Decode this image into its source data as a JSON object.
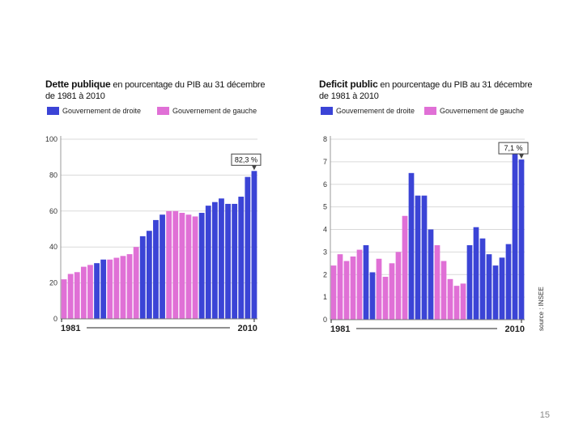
{
  "slide": {
    "number": "15"
  },
  "colors": {
    "droite": "#3b44d6",
    "gauche": "#e070d6",
    "grid": "#d9d9d9",
    "axis": "#222222"
  },
  "charts": [
    {
      "title_bold": "Dette publique",
      "title_rest": " en pourcentage du PIB au 31 décembre",
      "title_line2": "de 1981 à 2010"
    },
    {
      "title_bold": "Deficit public",
      "title_rest": " en pourcentage du PIB au 31 décembre",
      "title_line2": "de 1981 à 2010"
    }
  ],
  "legend": {
    "droite": "Gouvernement de droite",
    "gauche": "Gouvernement de gauche"
  },
  "chart_data": [
    {
      "type": "bar",
      "title": "Dette publique en pourcentage du PIB au 31 décembre de 1981 à 2010",
      "x_start_label": "1981",
      "x_end_label": "2010",
      "categories": [
        1981,
        1982,
        1983,
        1984,
        1985,
        1986,
        1987,
        1988,
        1989,
        1990,
        1991,
        1992,
        1993,
        1994,
        1995,
        1996,
        1997,
        1998,
        1999,
        2000,
        2001,
        2002,
        2003,
        2004,
        2005,
        2006,
        2007,
        2008,
        2009,
        2010
      ],
      "values": [
        22,
        25,
        26,
        29,
        30,
        31,
        33,
        33,
        34,
        35,
        36,
        40,
        46,
        49,
        55,
        58,
        60,
        60,
        59,
        58,
        57,
        59,
        63,
        65,
        67,
        64,
        64,
        68,
        79,
        82.3
      ],
      "government": [
        "G",
        "G",
        "G",
        "G",
        "G",
        "D",
        "D",
        "G",
        "G",
        "G",
        "G",
        "G",
        "D",
        "D",
        "D",
        "D",
        "G",
        "G",
        "G",
        "G",
        "G",
        "D",
        "D",
        "D",
        "D",
        "D",
        "D",
        "D",
        "D",
        "D"
      ],
      "ylim": [
        0,
        100
      ],
      "yticks": [
        0,
        20,
        40,
        60,
        80,
        100
      ],
      "grid": true,
      "annotation": {
        "text": "82,3 %",
        "category": 2010
      }
    },
    {
      "type": "bar",
      "title": "Deficit public en pourcentage du PIB au 31 décembre de 1981 à 2010",
      "x_start_label": "1981",
      "x_end_label": "2010",
      "categories": [
        1981,
        1982,
        1983,
        1984,
        1985,
        1986,
        1987,
        1988,
        1989,
        1990,
        1991,
        1992,
        1993,
        1994,
        1995,
        1996,
        1997,
        1998,
        1999,
        2000,
        2001,
        2002,
        2003,
        2004,
        2005,
        2006,
        2007,
        2008,
        2009,
        2010
      ],
      "values": [
        2.4,
        2.9,
        2.6,
        2.8,
        3.1,
        3.3,
        2.1,
        2.7,
        1.9,
        2.5,
        3.0,
        4.6,
        6.5,
        5.5,
        5.5,
        4.0,
        3.3,
        2.6,
        1.8,
        1.5,
        1.6,
        3.3,
        4.1,
        3.6,
        2.9,
        2.4,
        2.75,
        3.35,
        7.55,
        7.1
      ],
      "government": [
        "G",
        "G",
        "G",
        "G",
        "G",
        "D",
        "D",
        "G",
        "G",
        "G",
        "G",
        "G",
        "D",
        "D",
        "D",
        "D",
        "G",
        "G",
        "G",
        "G",
        "G",
        "D",
        "D",
        "D",
        "D",
        "D",
        "D",
        "D",
        "D",
        "D"
      ],
      "ylim": [
        0,
        8
      ],
      "yticks": [
        0,
        1,
        2,
        3,
        4,
        5,
        6,
        7,
        8
      ],
      "grid": true,
      "annotation": {
        "text": "7,1 %",
        "category": 2010
      },
      "source": "source : INSEE"
    }
  ]
}
